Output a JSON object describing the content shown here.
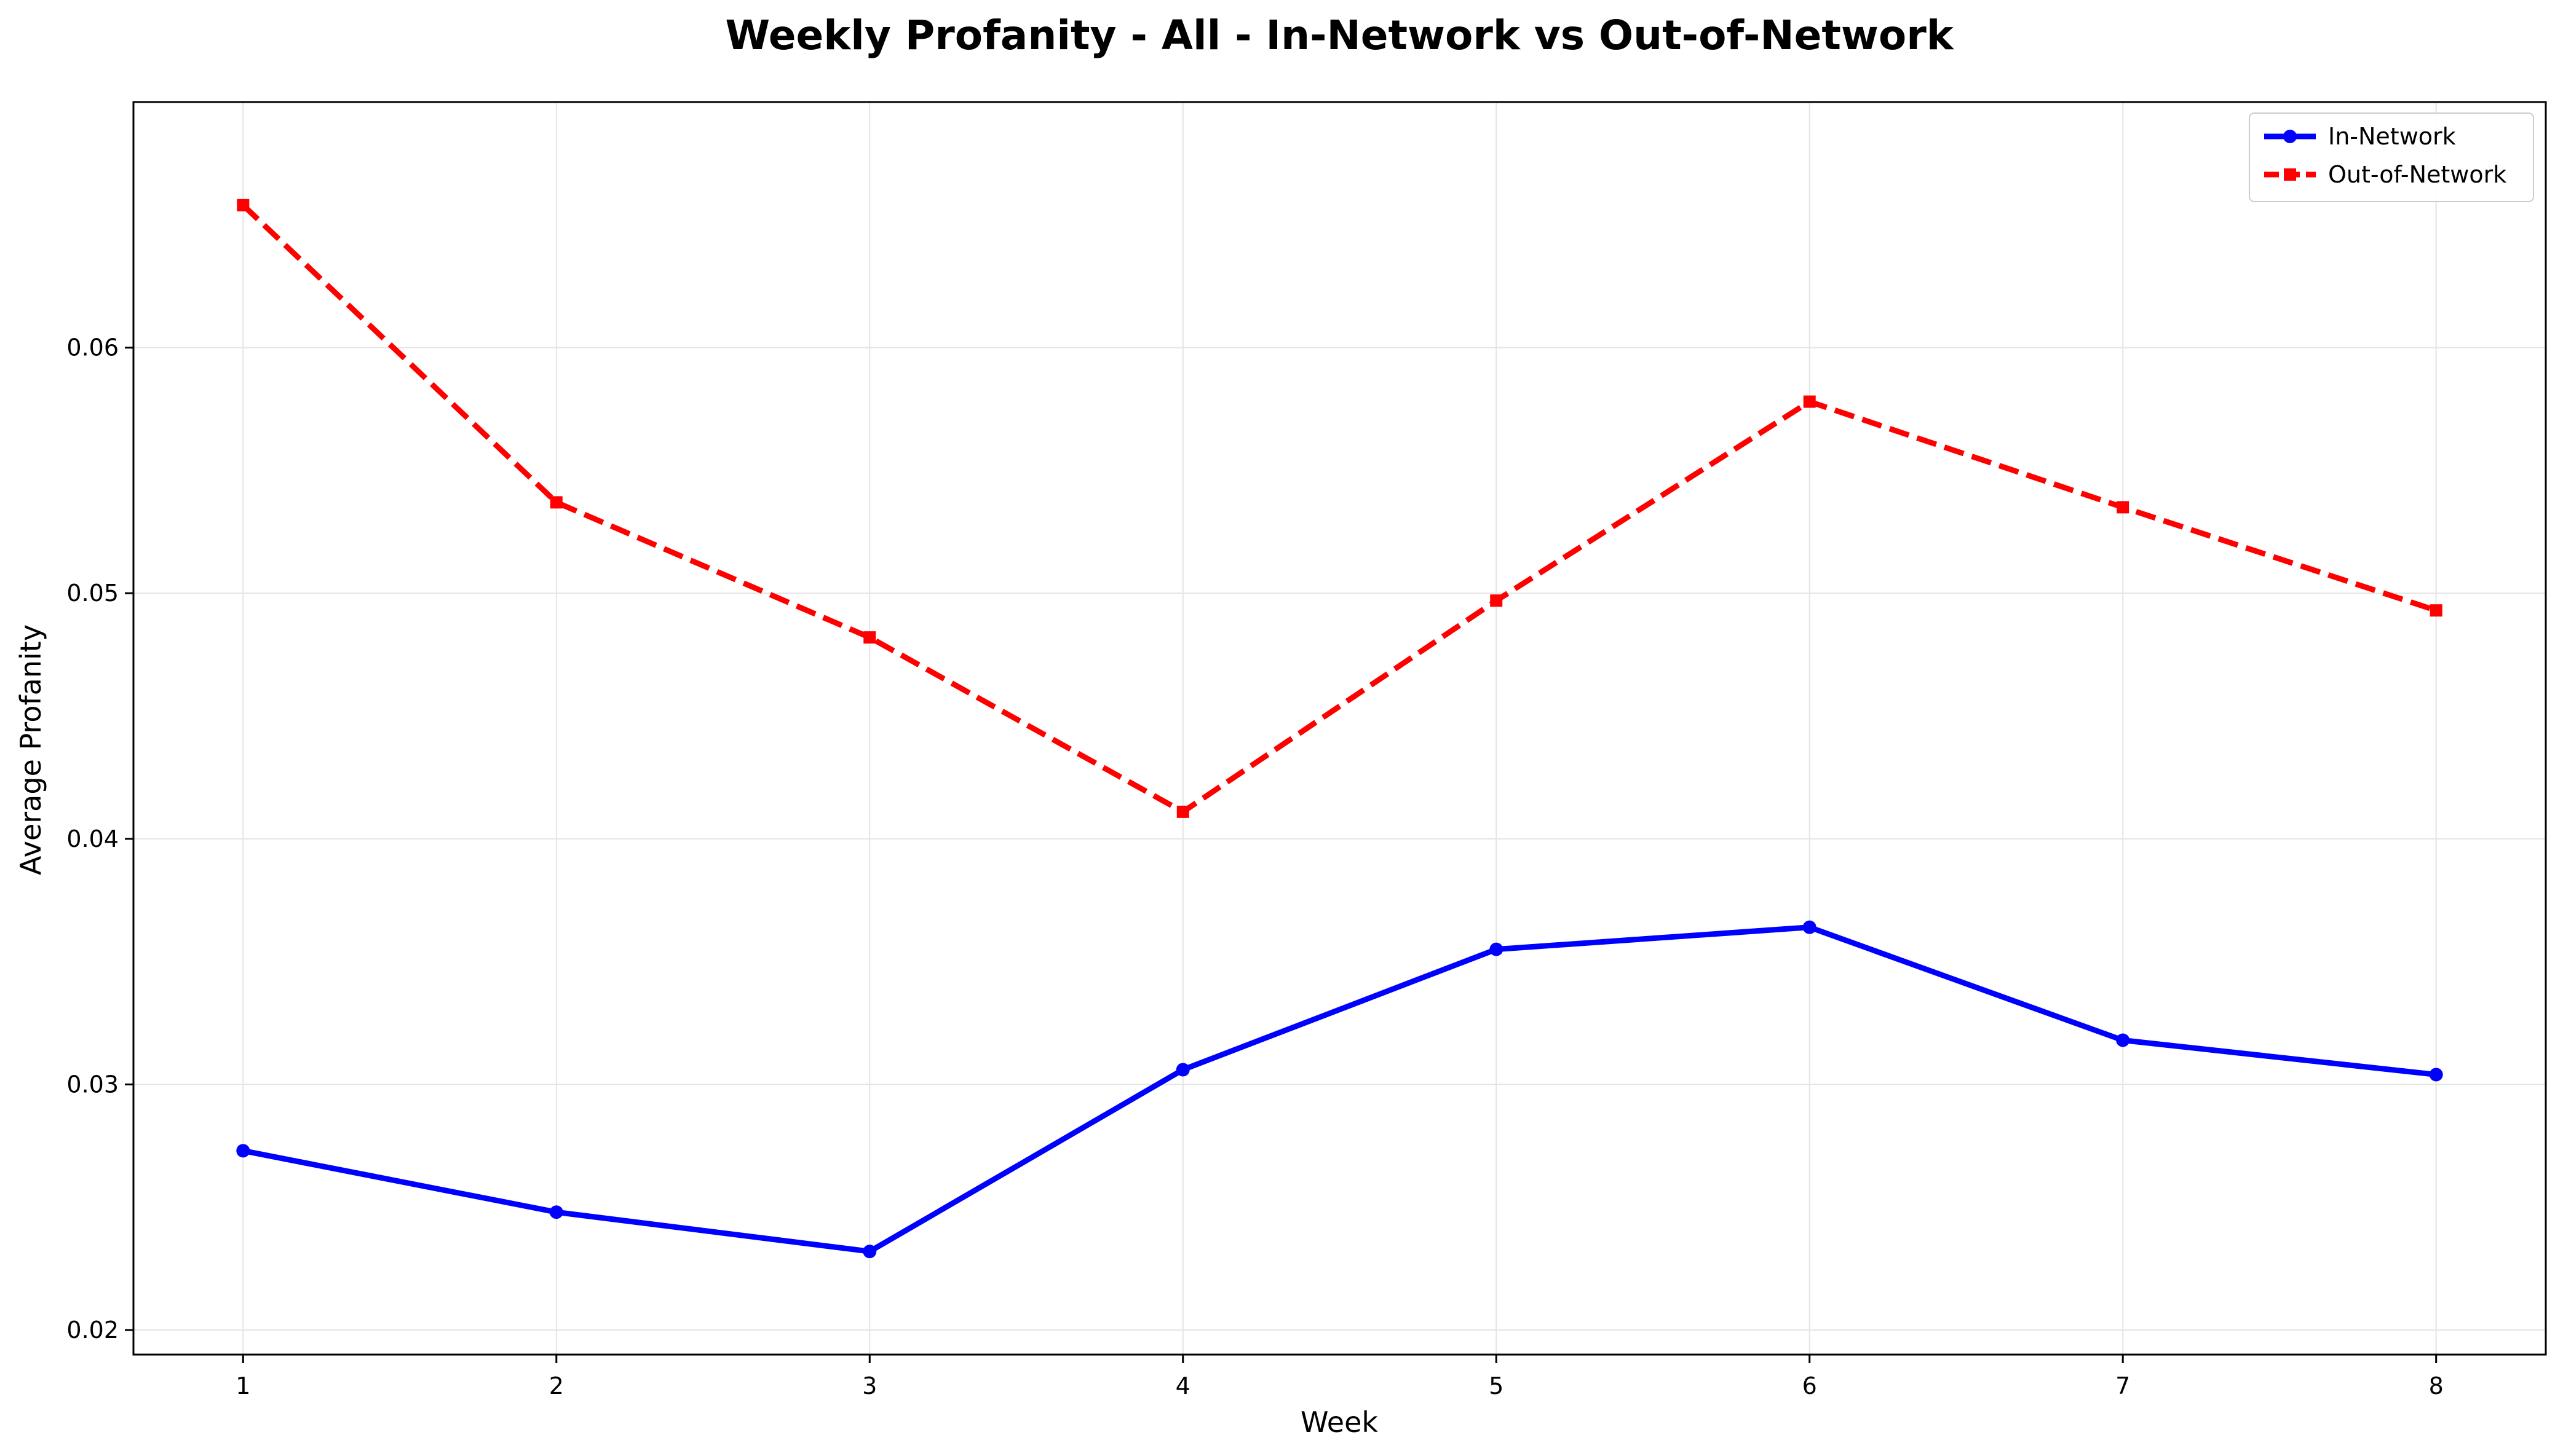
{
  "chart_data": {
    "type": "line",
    "title": "Weekly Profanity - All - In-Network vs Out-of-Network",
    "xlabel": "Week",
    "ylabel": "Average Profanity",
    "x": [
      1,
      2,
      3,
      4,
      5,
      6,
      7,
      8
    ],
    "xticks": [
      "1",
      "2",
      "3",
      "4",
      "5",
      "6",
      "7",
      "8"
    ],
    "xlim": [
      0.65,
      8.35
    ],
    "yticks": [
      "0.02",
      "0.03",
      "0.04",
      "0.05",
      "0.06"
    ],
    "ylim": [
      0.019,
      0.07
    ],
    "grid": true,
    "legend_position": "top-right",
    "series": [
      {
        "name": "In-Network",
        "color": "#0000ff",
        "line_style": "solid",
        "marker": "circle",
        "values": [
          0.0273,
          0.0248,
          0.0232,
          0.0306,
          0.0355,
          0.0364,
          0.0318,
          0.0304
        ]
      },
      {
        "name": "Out-of-Network",
        "color": "#ff0000",
        "line_style": "dashed",
        "marker": "square",
        "values": [
          0.0658,
          0.0537,
          0.0482,
          0.0411,
          0.0497,
          0.0578,
          0.0535,
          0.0493
        ]
      }
    ]
  }
}
